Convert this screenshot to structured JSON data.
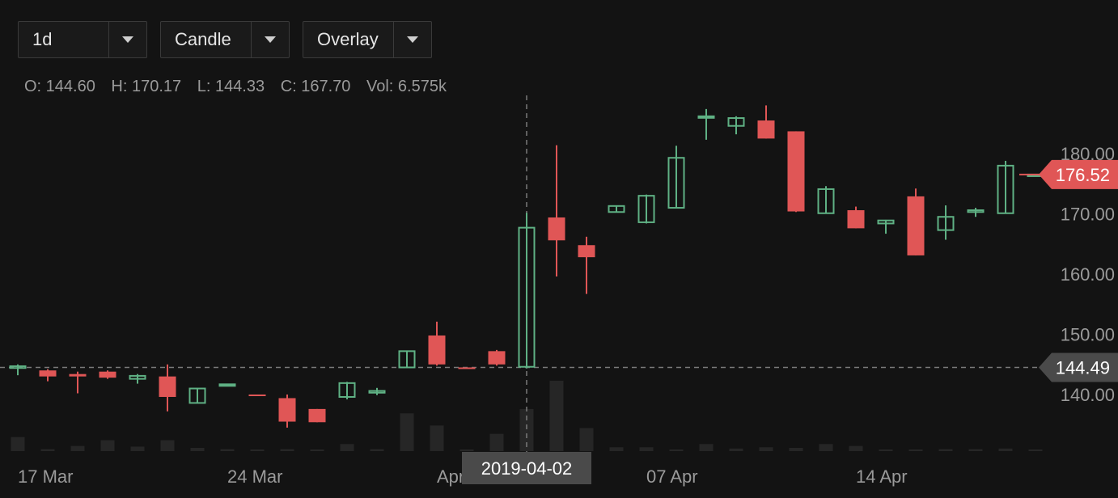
{
  "toolbar": {
    "interval": "1d",
    "chart_type": "Candle",
    "overlay": "Overlay"
  },
  "readout": {
    "open": "O: 144.60",
    "high": "H: 170.17",
    "low": "L: 144.33",
    "close": "C: 167.70",
    "volume": "Vol: 6.575k"
  },
  "colors": {
    "up": "#5fb184",
    "down": "#e05656",
    "background": "#131313",
    "crosshair": "#7a7a7a"
  },
  "chart_data": {
    "type": "candlestick",
    "ylim": [
      135,
      195
    ],
    "yticks": [
      "140.00",
      "150.00",
      "160.00",
      "170.00",
      "180.00"
    ],
    "ytick_values": [
      140,
      150,
      160,
      170,
      180
    ],
    "xticks": [
      {
        "label": "17 Mar",
        "date": "2019-03-17"
      },
      {
        "label": "24 Mar",
        "date": "2019-03-24"
      },
      {
        "label": "Apr",
        "date": "2019-03-31"
      },
      {
        "label": "07 Apr",
        "date": "2019-04-07"
      },
      {
        "label": "14 Apr",
        "date": "2019-04-14"
      }
    ],
    "last_price": {
      "label": "176.52",
      "value": 176.52
    },
    "crosshair": {
      "date_label": "2019-04-02",
      "date": "2019-04-02",
      "price_label": "144.49",
      "price": 144.49
    },
    "candles": [
      {
        "date": "2019-03-17",
        "o": 144.4,
        "h": 145.0,
        "l": 143.2,
        "c": 144.7,
        "v": 2.2
      },
      {
        "date": "2019-03-18",
        "o": 144.0,
        "h": 144.2,
        "l": 142.2,
        "c": 143.0,
        "v": 0.3
      },
      {
        "date": "2019-03-19",
        "o": 143.4,
        "h": 143.8,
        "l": 140.2,
        "c": 143.0,
        "v": 0.8
      },
      {
        "date": "2019-03-20",
        "o": 143.8,
        "h": 144.0,
        "l": 142.6,
        "c": 142.8,
        "v": 1.7
      },
      {
        "date": "2019-03-21",
        "o": 142.6,
        "h": 143.4,
        "l": 141.8,
        "c": 143.1,
        "v": 0.7
      },
      {
        "date": "2019-03-22",
        "o": 143.0,
        "h": 145.0,
        "l": 137.2,
        "c": 139.6,
        "v": 1.7
      },
      {
        "date": "2019-03-23",
        "o": 138.6,
        "h": 141.0,
        "l": 138.6,
        "c": 141.0,
        "v": 0.5
      },
      {
        "date": "2019-03-24",
        "o": 141.5,
        "h": 141.8,
        "l": 141.4,
        "c": 141.7,
        "v": 0.3
      },
      {
        "date": "2019-03-25",
        "o": 140.0,
        "h": 140.0,
        "l": 139.9,
        "c": 139.9,
        "v": 0.1
      },
      {
        "date": "2019-03-26",
        "o": 139.4,
        "h": 140.0,
        "l": 134.5,
        "c": 135.5,
        "v": 0.3
      },
      {
        "date": "2019-03-27",
        "o": 137.6,
        "h": 137.6,
        "l": 135.4,
        "c": 135.4,
        "v": 0.1
      },
      {
        "date": "2019-03-28",
        "o": 139.6,
        "h": 142.1,
        "l": 139.2,
        "c": 141.9,
        "v": 1.1
      },
      {
        "date": "2019-03-29",
        "o": 140.3,
        "h": 141.1,
        "l": 139.9,
        "c": 140.6,
        "v": 0.3
      },
      {
        "date": "2019-03-30",
        "o": 144.5,
        "h": 147.3,
        "l": 144.4,
        "c": 147.2,
        "v": 5.9
      },
      {
        "date": "2019-03-31",
        "o": 149.8,
        "h": 152.1,
        "l": 144.8,
        "c": 145.0,
        "v": 4.0
      },
      {
        "date": "2019-04-01",
        "o": 144.5,
        "h": 144.5,
        "l": 144.3,
        "c": 144.4,
        "v": 0.2
      },
      {
        "date": "2019-04-01",
        "o": 147.2,
        "h": 147.4,
        "l": 144.8,
        "c": 145.0,
        "v": 2.7
      },
      {
        "date": "2019-04-02",
        "o": 144.6,
        "h": 170.17,
        "l": 144.33,
        "c": 167.7,
        "v": 6.575
      },
      {
        "date": "2019-04-03",
        "o": 169.4,
        "h": 181.4,
        "l": 159.6,
        "c": 165.6,
        "v": 11.0
      },
      {
        "date": "2019-04-04",
        "o": 164.8,
        "h": 166.2,
        "l": 156.7,
        "c": 162.8,
        "v": 3.6
      },
      {
        "date": "2019-04-05",
        "o": 170.3,
        "h": 171.4,
        "l": 170.2,
        "c": 171.3,
        "v": 0.6
      },
      {
        "date": "2019-04-06",
        "o": 168.6,
        "h": 173.2,
        "l": 168.4,
        "c": 173.0,
        "v": 0.6
      },
      {
        "date": "2019-04-07",
        "o": 171.0,
        "h": 181.3,
        "l": 170.9,
        "c": 179.3,
        "v": 0.2
      },
      {
        "date": "2019-04-08",
        "o": 186.0,
        "h": 187.4,
        "l": 182.3,
        "c": 186.2,
        "v": 1.1
      },
      {
        "date": "2019-04-09",
        "o": 184.6,
        "h": 186.2,
        "l": 183.2,
        "c": 185.9,
        "v": 0.4
      },
      {
        "date": "2019-04-10",
        "o": 185.5,
        "h": 188.0,
        "l": 182.5,
        "c": 182.5,
        "v": 0.6
      },
      {
        "date": "2019-04-11",
        "o": 183.7,
        "h": 183.7,
        "l": 170.3,
        "c": 170.4,
        "v": 0.5
      },
      {
        "date": "2019-04-12",
        "o": 170.1,
        "h": 174.6,
        "l": 170.0,
        "c": 174.1,
        "v": 1.1
      },
      {
        "date": "2019-04-13",
        "o": 170.6,
        "h": 171.2,
        "l": 167.6,
        "c": 167.6,
        "v": 0.8
      },
      {
        "date": "2019-04-14",
        "o": 168.4,
        "h": 169.0,
        "l": 166.7,
        "c": 168.9,
        "v": 0.2
      },
      {
        "date": "2019-04-15",
        "o": 172.9,
        "h": 174.2,
        "l": 163.1,
        "c": 163.1,
        "v": 0.1
      },
      {
        "date": "2019-04-16",
        "o": 167.3,
        "h": 171.4,
        "l": 165.7,
        "c": 169.5,
        "v": 0.3
      },
      {
        "date": "2019-04-17",
        "o": 170.3,
        "h": 171.0,
        "l": 169.5,
        "c": 170.6,
        "v": 0.3
      },
      {
        "date": "2019-04-18",
        "o": 170.1,
        "h": 178.8,
        "l": 170.0,
        "c": 178.0,
        "v": 0.4
      },
      {
        "date": "2019-04-19",
        "o": 176.52,
        "h": 176.52,
        "l": 176.52,
        "c": 176.52,
        "v": 0.0
      }
    ]
  }
}
